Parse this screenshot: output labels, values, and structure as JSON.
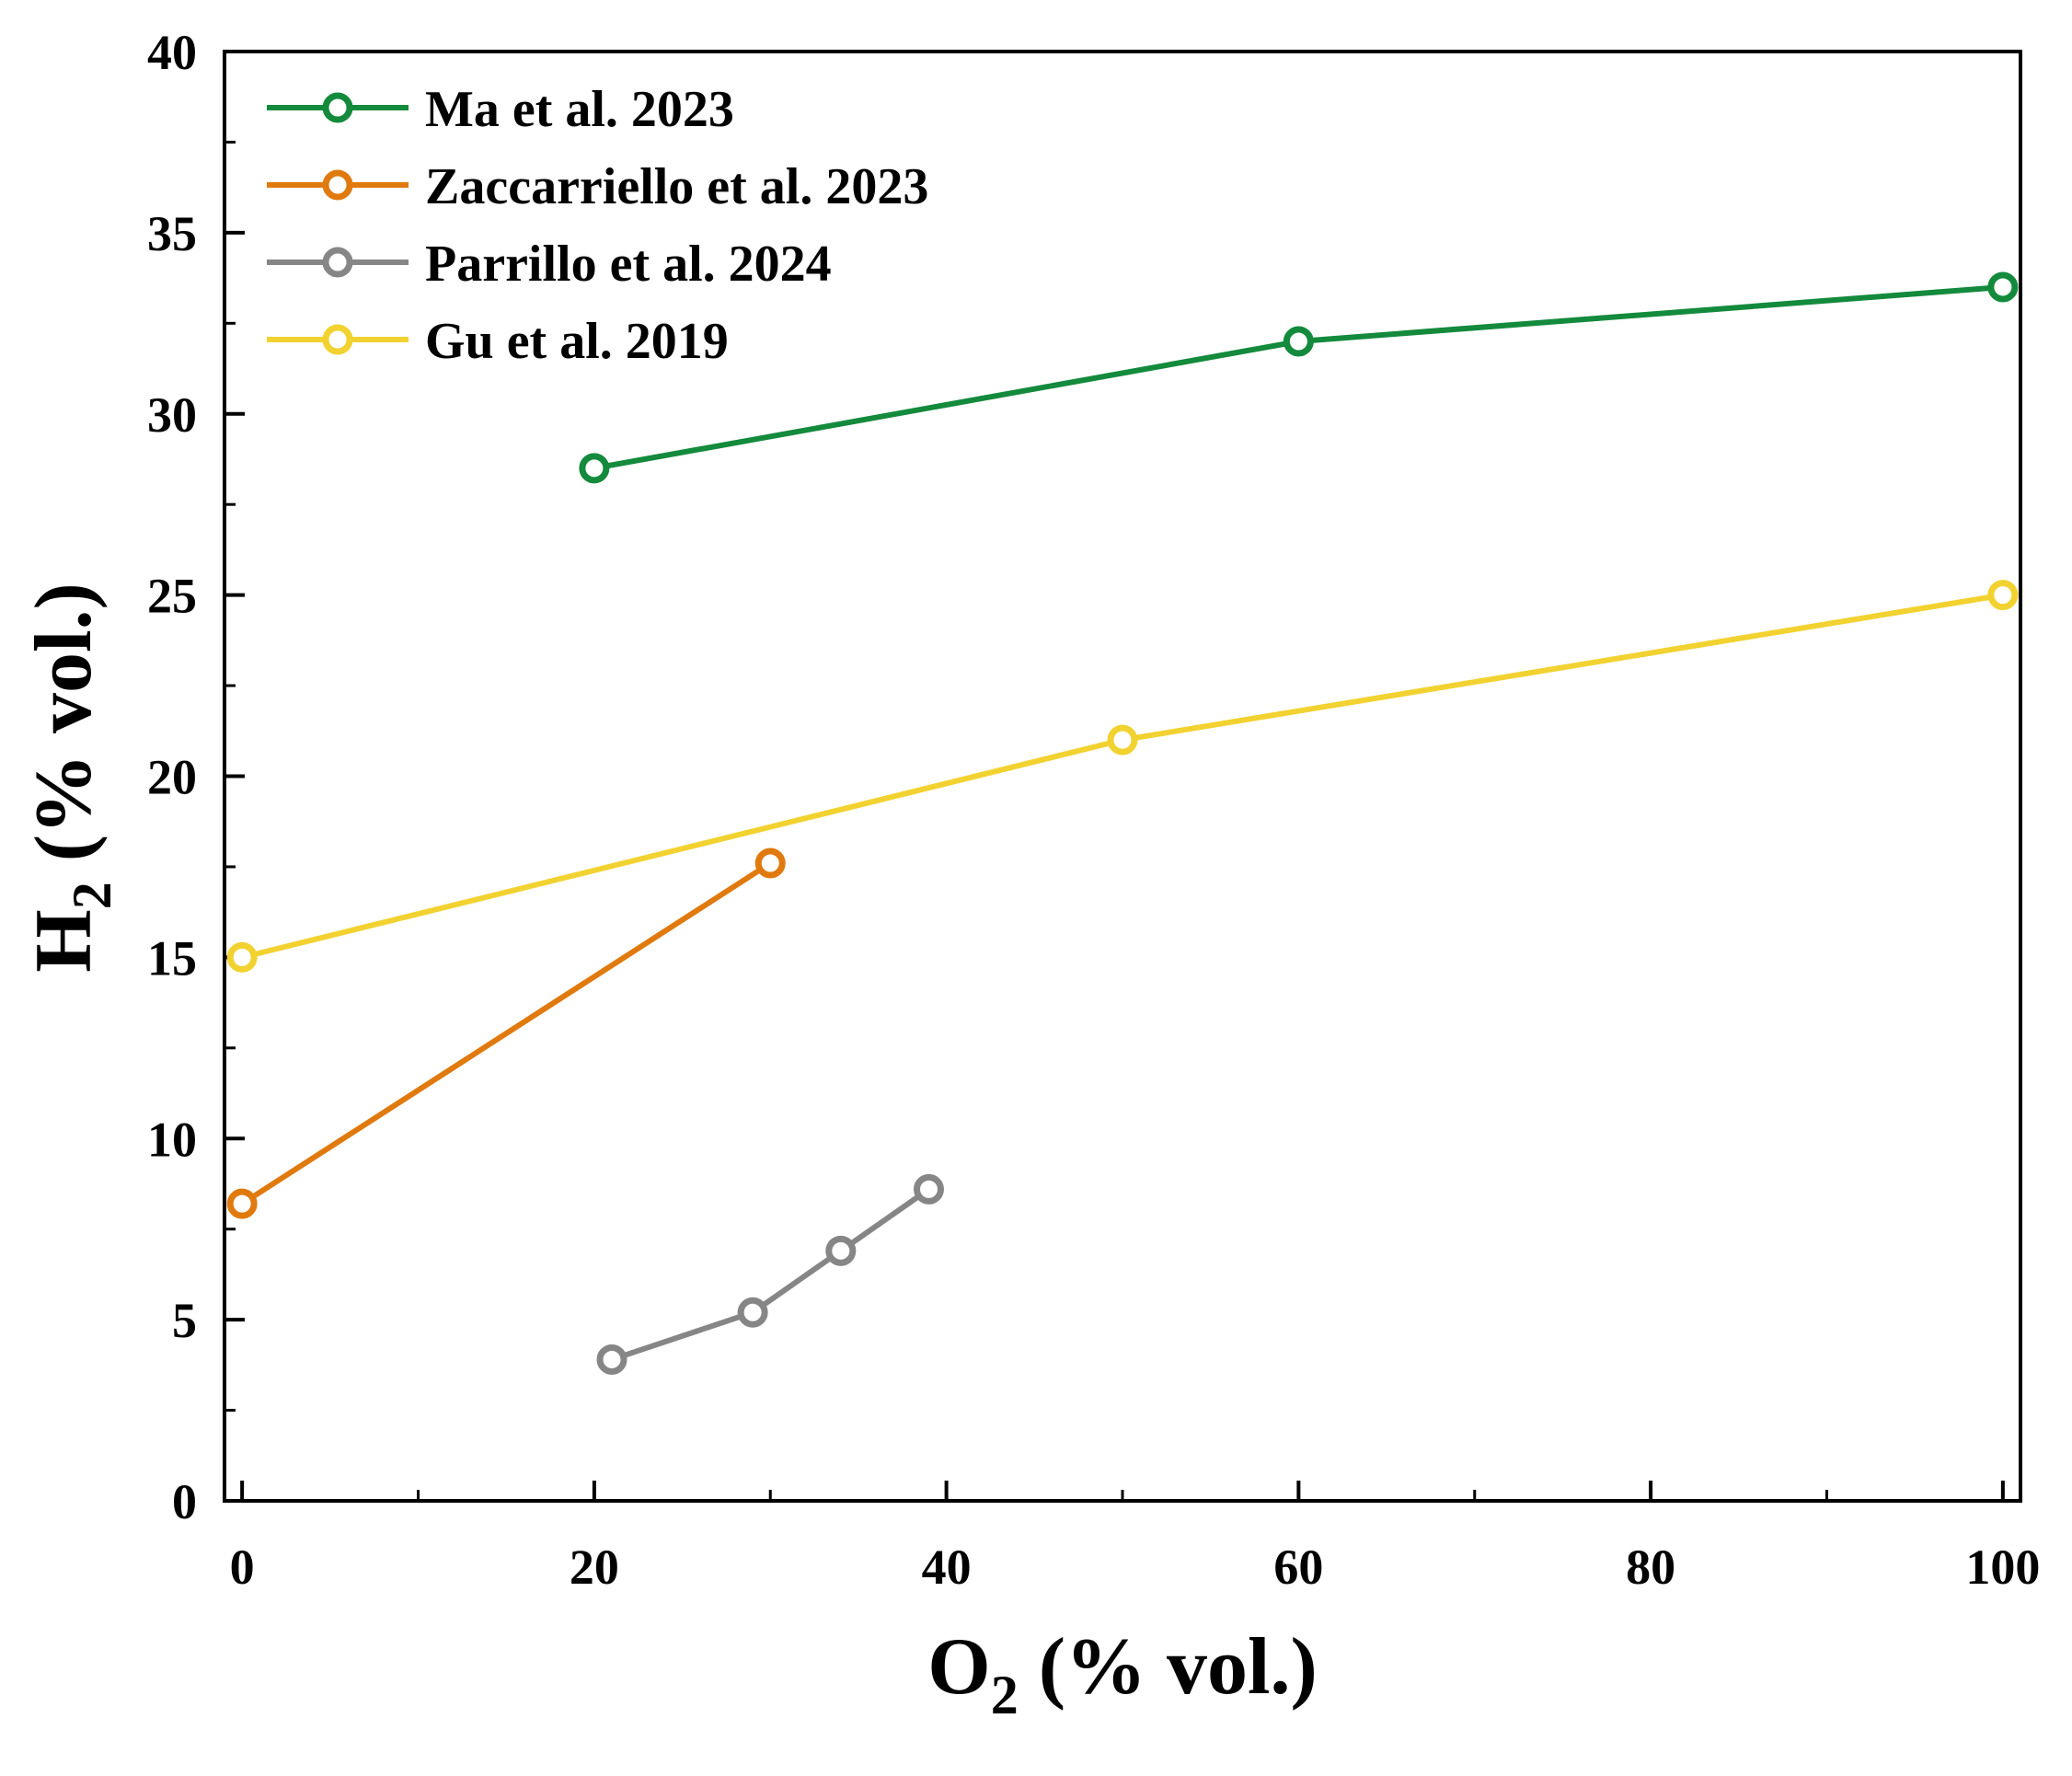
{
  "chart_data": {
    "type": "line",
    "xlabel": {
      "main": "O",
      "sub": "2",
      "rest": " (% vol.)"
    },
    "ylabel": {
      "main": "H",
      "sub": "2",
      "rest": " (% vol.)"
    },
    "xlim": [
      -1,
      101
    ],
    "ylim": [
      0,
      40
    ],
    "xticks": [
      0,
      20,
      40,
      60,
      80,
      100
    ],
    "xticklabels": [
      "0",
      "20",
      "40",
      "60",
      "80",
      "100"
    ],
    "xminor": [
      10,
      30,
      50,
      70,
      90
    ],
    "yticks": [
      0,
      5,
      10,
      15,
      20,
      25,
      30,
      35,
      40
    ],
    "yticklabels": [
      "0",
      "5",
      "10",
      "15",
      "20",
      "25",
      "30",
      "35",
      "40"
    ],
    "yminor": [
      2.5,
      7.5,
      12.5,
      17.5,
      22.5,
      27.5,
      32.5,
      37.5
    ],
    "grid": false,
    "legend_position": "top-left",
    "series": [
      {
        "name": "Ma et al. 2023",
        "color": "#138a3c",
        "x": [
          20,
          60,
          100
        ],
        "y": [
          28.5,
          32.0,
          33.5
        ]
      },
      {
        "name": "Zaccarriello et al. 2023",
        "color": "#e07a0e",
        "x": [
          0,
          30
        ],
        "y": [
          8.2,
          17.6
        ]
      },
      {
        "name": "Parrillo et al. 2024",
        "color": "#868686",
        "x": [
          21,
          29,
          34,
          39
        ],
        "y": [
          3.9,
          5.2,
          6.9,
          8.6
        ]
      },
      {
        "name": "Gu et al. 2019",
        "color": "#f2d230",
        "x": [
          0,
          50,
          100
        ],
        "y": [
          15.0,
          21.0,
          25.0
        ]
      }
    ]
  }
}
